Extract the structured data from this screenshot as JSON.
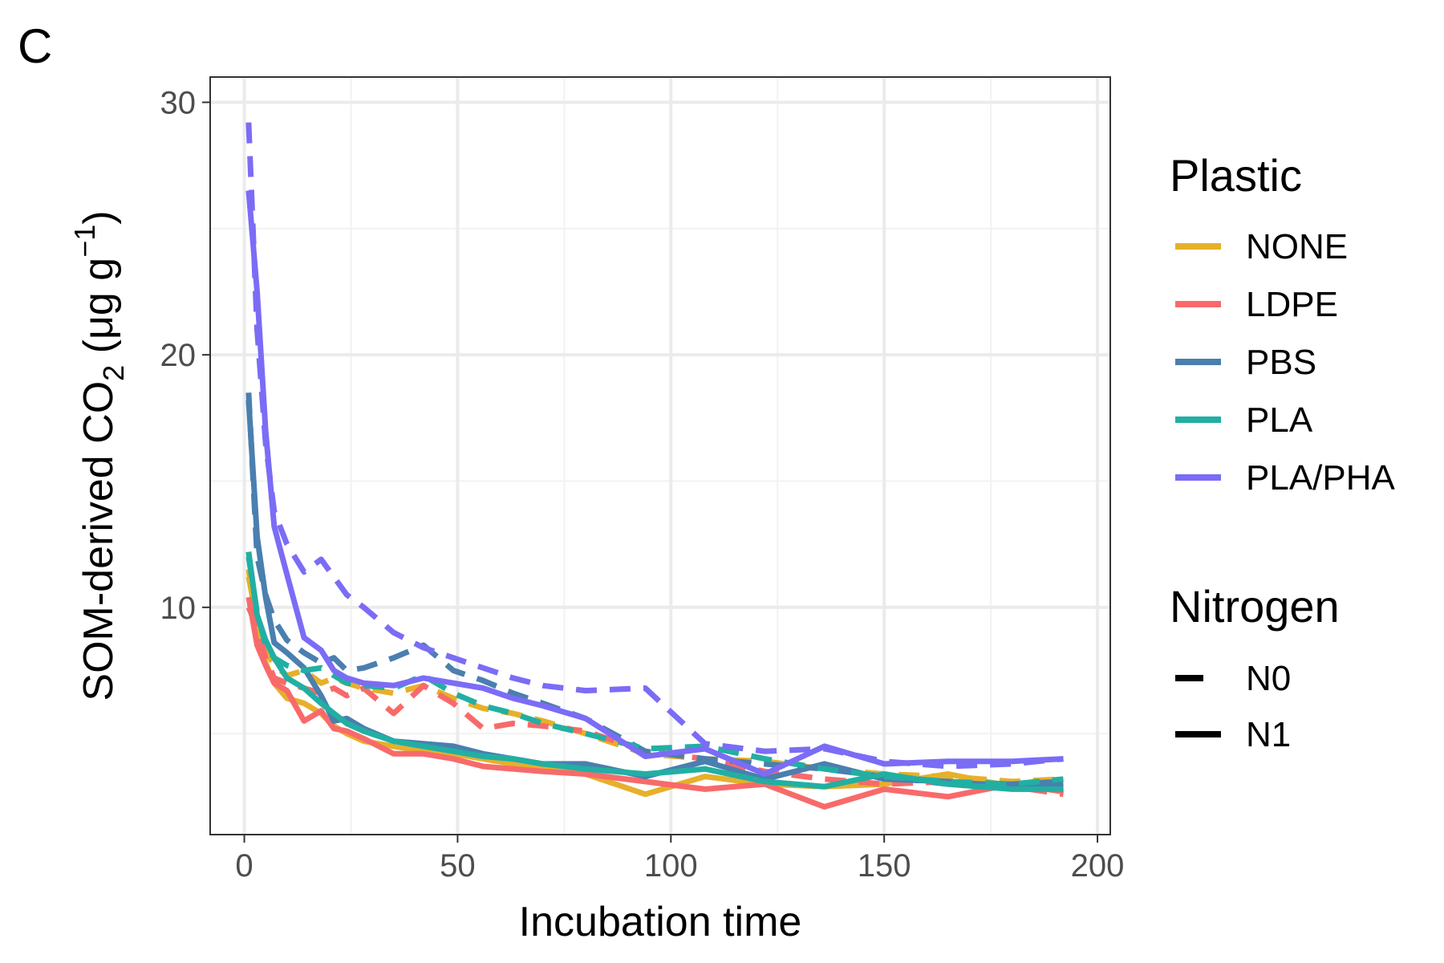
{
  "panel_label": "C",
  "chart_data": {
    "type": "line",
    "xlabel": "Incubation time",
    "ylabel": {
      "main": "SOM-derived CO",
      "sub": "2",
      "unit_open": " (μg g",
      "sup": "−1",
      "unit_close": ")"
    },
    "xlim": [
      -8,
      203
    ],
    "ylim": [
      1,
      31
    ],
    "x_ticks": [
      0,
      50,
      100,
      150,
      200
    ],
    "y_ticks": [
      10,
      20,
      30
    ],
    "grid": true,
    "legend_position": "right",
    "legend": {
      "color_title": "Plastic",
      "color_entries": [
        {
          "label": "NONE",
          "color": "#E6B02A"
        },
        {
          "label": "LDPE",
          "color": "#F86A6A"
        },
        {
          "label": "PBS",
          "color": "#4A7FAF"
        },
        {
          "label": "PLA",
          "color": "#22AFA3"
        },
        {
          "label": "PLA/PHA",
          "color": "#7B6CF6"
        }
      ],
      "linetype_title": "Nitrogen",
      "linetype_entries": [
        {
          "label": "N0",
          "dash": "dashed"
        },
        {
          "label": "N1",
          "dash": "solid"
        }
      ]
    },
    "series": [
      {
        "plastic": "NONE",
        "nitrogen": "N0",
        "color": "#E6B02A",
        "dash": "dashed",
        "x": [
          1,
          3,
          5,
          7,
          10,
          14,
          18,
          21,
          24,
          28,
          35,
          42,
          49,
          56,
          63,
          70,
          80,
          94,
          108,
          122,
          136,
          150,
          165,
          180,
          192
        ],
        "y": [
          11.2,
          9.5,
          8.3,
          7.7,
          7.3,
          7.5,
          7.0,
          7.2,
          7.0,
          6.8,
          6.6,
          6.9,
          6.4,
          6.0,
          5.8,
          5.5,
          5.0,
          4.2,
          4.0,
          3.9,
          3.6,
          3.4,
          3.3,
          3.1,
          3.2
        ]
      },
      {
        "plastic": "NONE",
        "nitrogen": "N1",
        "color": "#E6B02A",
        "dash": "solid",
        "x": [
          1,
          3,
          5,
          7,
          10,
          14,
          18,
          21,
          24,
          28,
          35,
          42,
          49,
          56,
          63,
          70,
          80,
          94,
          108,
          122,
          136,
          150,
          165,
          180,
          192
        ],
        "y": [
          11.5,
          9.0,
          7.8,
          7.0,
          6.4,
          6.2,
          5.8,
          5.3,
          5.0,
          4.7,
          4.5,
          4.3,
          4.2,
          4.0,
          3.8,
          3.7,
          3.4,
          2.6,
          3.3,
          3.0,
          2.9,
          3.0,
          3.4,
          2.9,
          2.8
        ]
      },
      {
        "plastic": "LDPE",
        "nitrogen": "N0",
        "color": "#F86A6A",
        "dash": "dashed",
        "x": [
          1,
          3,
          5,
          7,
          10,
          14,
          18,
          21,
          24,
          28,
          35,
          42,
          49,
          56,
          63,
          70,
          80,
          94,
          108,
          122,
          136,
          150,
          165,
          180,
          192
        ],
        "y": [
          10.0,
          9.2,
          8.0,
          7.2,
          7.0,
          6.8,
          6.6,
          6.8,
          6.5,
          6.8,
          5.8,
          6.9,
          6.2,
          5.2,
          5.4,
          5.3,
          5.1,
          4.3,
          4.0,
          3.5,
          3.2,
          3.0,
          3.1,
          2.9,
          2.6
        ]
      },
      {
        "plastic": "LDPE",
        "nitrogen": "N1",
        "color": "#F86A6A",
        "dash": "solid",
        "x": [
          1,
          3,
          5,
          7,
          10,
          14,
          18,
          21,
          24,
          28,
          35,
          42,
          49,
          56,
          63,
          70,
          80,
          94,
          108,
          122,
          136,
          150,
          165,
          180,
          192
        ],
        "y": [
          10.4,
          8.5,
          7.7,
          7.0,
          6.7,
          5.5,
          5.9,
          5.2,
          5.1,
          4.8,
          4.2,
          4.2,
          4.0,
          3.7,
          3.6,
          3.5,
          3.4,
          3.1,
          2.8,
          3.0,
          2.1,
          2.8,
          2.5,
          3.0,
          2.7
        ]
      },
      {
        "plastic": "PBS",
        "nitrogen": "N0",
        "color": "#4A7FAF",
        "dash": "dashed",
        "x": [
          1,
          3,
          5,
          7,
          10,
          14,
          18,
          21,
          24,
          28,
          35,
          42,
          49,
          56,
          63,
          70,
          80,
          94,
          108,
          122,
          136,
          150,
          165,
          180,
          192
        ],
        "y": [
          18.5,
          12.0,
          10.5,
          9.5,
          8.7,
          8.2,
          7.8,
          8.0,
          7.5,
          7.6,
          8.0,
          8.5,
          7.5,
          7.1,
          6.6,
          6.2,
          5.6,
          4.3,
          4.0,
          3.8,
          3.6,
          3.3,
          3.0,
          3.0,
          3.1
        ]
      },
      {
        "plastic": "PBS",
        "nitrogen": "N1",
        "color": "#4A7FAF",
        "dash": "solid",
        "x": [
          1,
          3,
          5,
          7,
          10,
          14,
          18,
          21,
          24,
          28,
          35,
          42,
          49,
          56,
          63,
          70,
          80,
          94,
          108,
          122,
          136,
          150,
          165,
          180,
          192
        ],
        "y": [
          18.2,
          12.8,
          10.4,
          8.6,
          8.2,
          7.6,
          6.5,
          5.5,
          5.6,
          5.2,
          4.7,
          4.6,
          4.5,
          4.2,
          4.0,
          3.8,
          3.8,
          3.3,
          3.9,
          3.2,
          3.8,
          3.2,
          3.1,
          2.9,
          3.0
        ]
      },
      {
        "plastic": "PLA",
        "nitrogen": "N0",
        "color": "#22AFA3",
        "dash": "dashed",
        "x": [
          1,
          3,
          5,
          7,
          10,
          14,
          18,
          21,
          24,
          28,
          35,
          42,
          49,
          56,
          63,
          70,
          80,
          94,
          108,
          122,
          136,
          150,
          165,
          180,
          192
        ],
        "y": [
          12.0,
          9.8,
          8.5,
          8.0,
          7.7,
          7.5,
          7.6,
          7.3,
          7.0,
          6.9,
          6.8,
          7.3,
          6.6,
          6.1,
          5.8,
          5.4,
          5.0,
          4.4,
          4.5,
          4.0,
          3.6,
          3.3,
          3.1,
          3.0,
          3.2
        ]
      },
      {
        "plastic": "PLA",
        "nitrogen": "N1",
        "color": "#22AFA3",
        "dash": "solid",
        "x": [
          1,
          3,
          5,
          7,
          10,
          14,
          18,
          21,
          24,
          28,
          35,
          42,
          49,
          56,
          63,
          70,
          80,
          94,
          108,
          122,
          136,
          150,
          165,
          180,
          192
        ],
        "y": [
          12.2,
          9.7,
          8.7,
          8.0,
          7.2,
          6.8,
          6.2,
          5.8,
          5.4,
          5.1,
          4.7,
          4.5,
          4.3,
          4.1,
          4.0,
          3.8,
          3.6,
          3.4,
          3.6,
          3.1,
          2.9,
          3.4,
          3.0,
          2.8,
          2.8
        ]
      },
      {
        "plastic": "PLA/PHA",
        "nitrogen": "N0",
        "color": "#7B6CF6",
        "dash": "dashed",
        "x": [
          1,
          3,
          5,
          7,
          10,
          14,
          18,
          21,
          24,
          28,
          35,
          42,
          49,
          56,
          63,
          70,
          80,
          94,
          108,
          122,
          136,
          150,
          165,
          180,
          192
        ],
        "y": [
          29.2,
          21.0,
          16.5,
          13.8,
          12.5,
          11.4,
          11.9,
          11.2,
          10.5,
          10.0,
          9.0,
          8.4,
          8.0,
          7.6,
          7.2,
          6.9,
          6.7,
          6.8,
          4.6,
          4.3,
          4.4,
          3.9,
          3.7,
          3.8,
          4.0
        ]
      },
      {
        "plastic": "PLA/PHA",
        "nitrogen": "N1",
        "color": "#7B6CF6",
        "dash": "solid",
        "x": [
          1,
          3,
          5,
          7,
          10,
          14,
          18,
          21,
          24,
          28,
          35,
          42,
          49,
          56,
          63,
          70,
          80,
          94,
          108,
          122,
          136,
          150,
          165,
          180,
          192
        ],
        "y": [
          26.5,
          22.5,
          17.0,
          13.2,
          11.3,
          8.8,
          8.3,
          7.5,
          7.2,
          7.0,
          6.9,
          7.2,
          7.0,
          6.8,
          6.4,
          6.1,
          5.6,
          4.1,
          4.4,
          3.4,
          4.5,
          3.8,
          3.9,
          3.9,
          4.0
        ]
      }
    ]
  }
}
